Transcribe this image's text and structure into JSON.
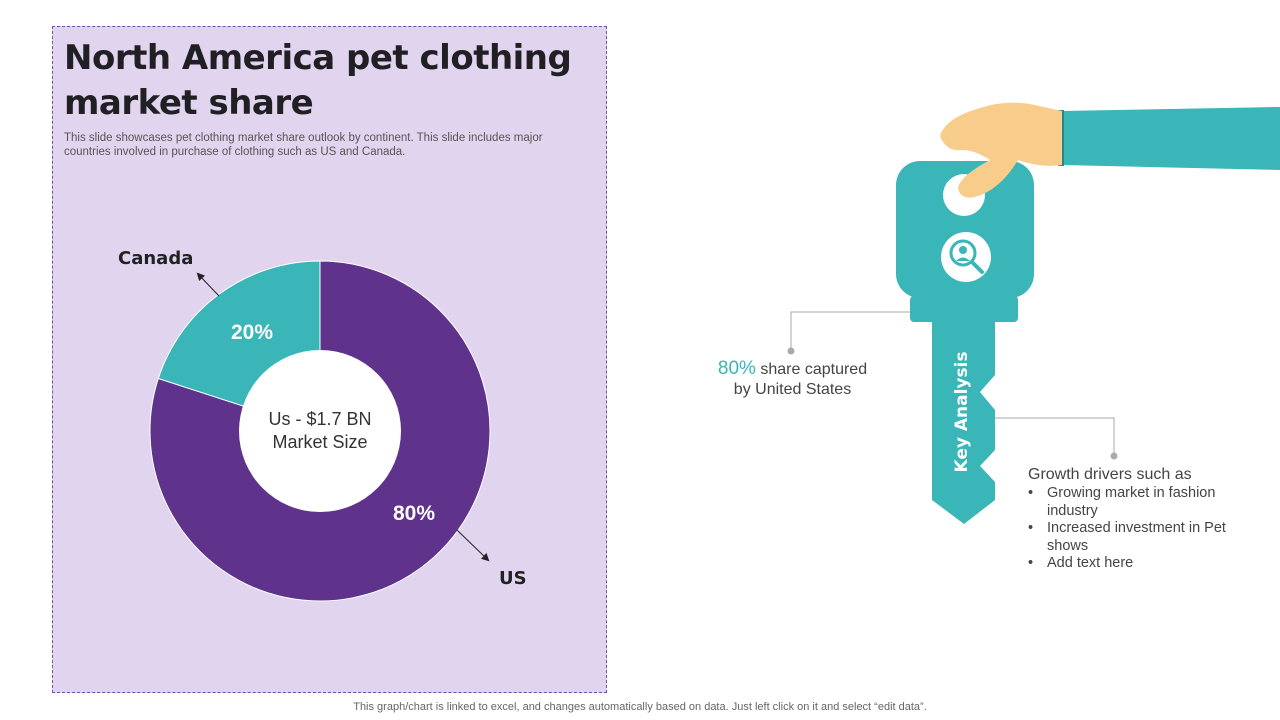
{
  "title": "North America pet clothing market share",
  "subtitle": "This slide showcases pet clothing market share outlook by continent. This slide includes major countries involved in purchase of clothing such as US and Canada.",
  "footer": "This graph/chart is linked to excel,  and changes automatically based on data. Just left click on it and select “edit data”.",
  "chart_data": {
    "type": "pie",
    "variant": "donut",
    "center_label_line1": "Us - $1.7 BN",
    "center_label_line2": "Market Size",
    "slices": [
      {
        "label": "US",
        "value": 80,
        "display": "80%",
        "color": "#5f338c"
      },
      {
        "label": "Canada",
        "value": 20,
        "display": "20%",
        "color": "#3ab5b8"
      }
    ]
  },
  "key": {
    "label": "Key Analysis",
    "icon": "search-person-icon",
    "color": "#3ab5b8",
    "hand_color": "#f8cd8c",
    "sleeve_color": "#3ab5b8"
  },
  "callout_us": {
    "pct": "80%",
    "text_line1": " share captured",
    "text_line2": "by United States"
  },
  "callout_drivers": {
    "heading": "Growth drivers such as",
    "bullets": [
      "Growing market in fashion industry",
      "Increased investment in Pet shows",
      "Add text here"
    ]
  }
}
